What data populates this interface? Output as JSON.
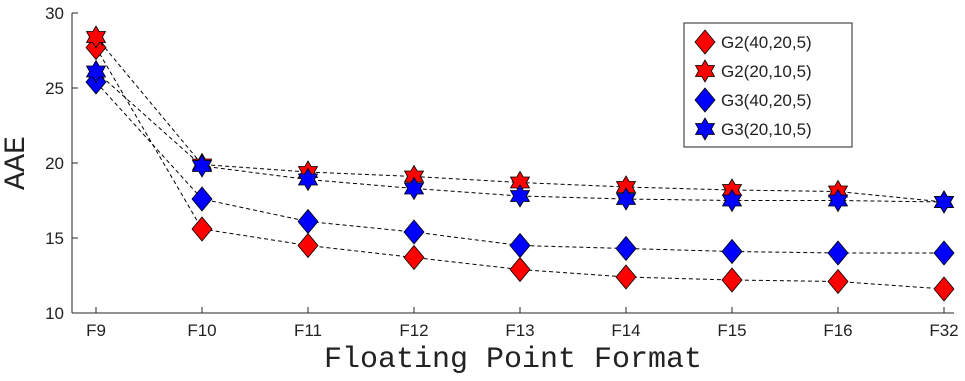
{
  "chart_data": {
    "type": "line",
    "categories": [
      "F9",
      "F10",
      "F11",
      "F12",
      "F13",
      "F14",
      "F15",
      "F16",
      "F32"
    ],
    "xlabel": "Floating Point Format",
    "ylabel": "AAE",
    "ylim": [
      10,
      30
    ],
    "yticks": [
      10,
      15,
      20,
      25,
      30
    ],
    "grid": false,
    "legend_position": "top-right",
    "series": [
      {
        "name": "G2(40,20,5)",
        "marker": "diamond",
        "color": "#ff0000",
        "values": [
          27.7,
          15.6,
          14.5,
          13.7,
          12.9,
          12.4,
          12.2,
          12.1,
          11.6
        ]
      },
      {
        "name": "G2(20,10,5)",
        "marker": "hexagram",
        "color": "#ff0000",
        "values": [
          28.4,
          19.9,
          19.4,
          19.1,
          18.7,
          18.4,
          18.2,
          18.1,
          17.4
        ]
      },
      {
        "name": "G3(40,20,5)",
        "marker": "diamond",
        "color": "#0000ff",
        "values": [
          25.4,
          17.6,
          16.1,
          15.4,
          14.5,
          14.3,
          14.1,
          14.0,
          14.0
        ]
      },
      {
        "name": "G3(20,10,5)",
        "marker": "hexagram",
        "color": "#0000ff",
        "values": [
          26.1,
          19.8,
          18.9,
          18.3,
          17.8,
          17.6,
          17.5,
          17.5,
          17.4
        ]
      }
    ]
  }
}
